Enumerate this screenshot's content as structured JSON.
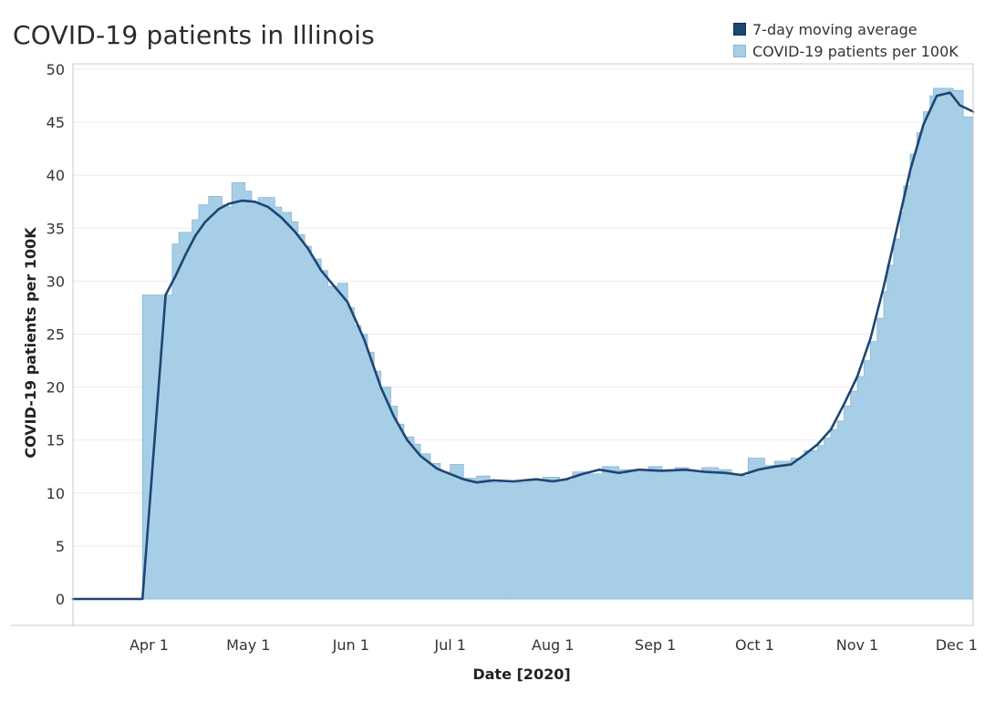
{
  "title": "COVID-19 patients in Illinois",
  "legend": [
    {
      "label": "7-day moving average",
      "color": "#1d4673",
      "border": "#0f2f52"
    },
    {
      "label": "COVID-19 patients per 100K",
      "color": "#a6cee6",
      "border": "#8ab6d6"
    }
  ],
  "chart_data": {
    "type": "bar",
    "title": "COVID-19 patients in Illinois",
    "xlabel": "Date [2020]",
    "ylabel": "COVID-19 patients per 100K",
    "ylim": [
      0,
      50
    ],
    "yticks": [
      0,
      5,
      10,
      15,
      20,
      25,
      30,
      35,
      40,
      45,
      50
    ],
    "x_start": "2020-03-09",
    "x_end": "2020-12-06",
    "xticks": [
      {
        "date": "2020-04-01",
        "label": "Apr 1"
      },
      {
        "date": "2020-05-01",
        "label": "May 1"
      },
      {
        "date": "2020-06-01",
        "label": "Jun 1"
      },
      {
        "date": "2020-07-01",
        "label": "Jul 1"
      },
      {
        "date": "2020-08-01",
        "label": "Aug 1"
      },
      {
        "date": "2020-09-01",
        "label": "Sep 1"
      },
      {
        "date": "2020-10-01",
        "label": "Oct 1"
      },
      {
        "date": "2020-11-01",
        "label": "Nov 1"
      },
      {
        "date": "2020-12-01",
        "label": "Dec 1"
      }
    ],
    "legend_position": "top-right",
    "grid": "horizontal",
    "series": [
      {
        "name": "COVID-19 patients per 100K",
        "kind": "bar",
        "color": "#a6cee6",
        "points": [
          [
            "2020-03-09",
            0
          ],
          [
            "2020-03-15",
            0
          ],
          [
            "2020-03-22",
            0
          ],
          [
            "2020-03-29",
            0
          ],
          [
            "2020-03-30",
            28.7
          ],
          [
            "2020-04-08",
            33.5
          ],
          [
            "2020-04-10",
            34.6
          ],
          [
            "2020-04-14",
            35.8
          ],
          [
            "2020-04-16",
            37.2
          ],
          [
            "2020-04-19",
            38.0
          ],
          [
            "2020-04-23",
            37.2
          ],
          [
            "2020-04-25",
            37.0
          ],
          [
            "2020-04-26",
            39.3
          ],
          [
            "2020-04-30",
            38.5
          ],
          [
            "2020-05-02",
            37.5
          ],
          [
            "2020-05-04",
            37.9
          ],
          [
            "2020-05-09",
            37.0
          ],
          [
            "2020-05-11",
            36.5
          ],
          [
            "2020-05-14",
            35.6
          ],
          [
            "2020-05-16",
            34.4
          ],
          [
            "2020-05-18",
            33.3
          ],
          [
            "2020-05-20",
            32.1
          ],
          [
            "2020-05-23",
            31.0
          ],
          [
            "2020-05-25",
            29.5
          ],
          [
            "2020-05-28",
            29.8
          ],
          [
            "2020-05-31",
            27.5
          ],
          [
            "2020-06-02",
            25.8
          ],
          [
            "2020-06-04",
            25.0
          ],
          [
            "2020-06-06",
            23.3
          ],
          [
            "2020-06-08",
            21.5
          ],
          [
            "2020-06-10",
            20.0
          ],
          [
            "2020-06-13",
            18.2
          ],
          [
            "2020-06-15",
            16.5
          ],
          [
            "2020-06-17",
            15.3
          ],
          [
            "2020-06-20",
            14.6
          ],
          [
            "2020-06-22",
            13.7
          ],
          [
            "2020-06-25",
            12.8
          ],
          [
            "2020-06-28",
            12.0
          ],
          [
            "2020-07-01",
            12.7
          ],
          [
            "2020-07-05",
            11.4
          ],
          [
            "2020-07-09",
            11.6
          ],
          [
            "2020-07-13",
            11.0
          ],
          [
            "2020-07-16",
            11.1
          ],
          [
            "2020-07-20",
            11.0
          ],
          [
            "2020-07-24",
            11.3
          ],
          [
            "2020-07-29",
            11.5
          ],
          [
            "2020-08-03",
            11.2
          ],
          [
            "2020-08-07",
            12.0
          ],
          [
            "2020-08-12",
            11.8
          ],
          [
            "2020-08-16",
            12.5
          ],
          [
            "2020-08-21",
            12.2
          ],
          [
            "2020-08-26",
            12.0
          ],
          [
            "2020-08-30",
            12.5
          ],
          [
            "2020-09-03",
            12.2
          ],
          [
            "2020-09-07",
            12.4
          ],
          [
            "2020-09-11",
            12.1
          ],
          [
            "2020-09-15",
            12.4
          ],
          [
            "2020-09-20",
            12.2
          ],
          [
            "2020-09-24",
            11.8
          ],
          [
            "2020-09-27",
            11.6
          ],
          [
            "2020-09-29",
            13.3
          ],
          [
            "2020-10-04",
            12.6
          ],
          [
            "2020-10-07",
            13.0
          ],
          [
            "2020-10-12",
            13.3
          ],
          [
            "2020-10-16",
            14.0
          ],
          [
            "2020-10-20",
            14.5
          ],
          [
            "2020-10-22",
            15.2
          ],
          [
            "2020-10-24",
            16.0
          ],
          [
            "2020-10-26",
            16.8
          ],
          [
            "2020-10-28",
            18.2
          ],
          [
            "2020-10-30",
            19.6
          ],
          [
            "2020-11-01",
            21.0
          ],
          [
            "2020-11-03",
            22.5
          ],
          [
            "2020-11-05",
            24.3
          ],
          [
            "2020-11-07",
            26.5
          ],
          [
            "2020-11-09",
            29.0
          ],
          [
            "2020-11-10",
            31.5
          ],
          [
            "2020-11-12",
            34.0
          ],
          [
            "2020-11-14",
            36.5
          ],
          [
            "2020-11-15",
            39.0
          ],
          [
            "2020-11-17",
            42.0
          ],
          [
            "2020-11-19",
            44.0
          ],
          [
            "2020-11-21",
            46.0
          ],
          [
            "2020-11-23",
            47.5
          ],
          [
            "2020-11-24",
            48.2
          ],
          [
            "2020-11-30",
            48.0
          ],
          [
            "2020-12-03",
            45.5
          ]
        ]
      },
      {
        "name": "7-day moving average",
        "kind": "line",
        "color": "#1d4673",
        "points": [
          [
            "2020-03-09",
            0
          ],
          [
            "2020-03-29",
            0
          ],
          [
            "2020-03-30",
            0
          ],
          [
            "2020-04-06",
            28.7
          ],
          [
            "2020-04-09",
            30.5
          ],
          [
            "2020-04-12",
            32.5
          ],
          [
            "2020-04-15",
            34.3
          ],
          [
            "2020-04-18",
            35.6
          ],
          [
            "2020-04-22",
            36.8
          ],
          [
            "2020-04-25",
            37.3
          ],
          [
            "2020-04-29",
            37.6
          ],
          [
            "2020-05-03",
            37.5
          ],
          [
            "2020-05-07",
            37.0
          ],
          [
            "2020-05-11",
            36.0
          ],
          [
            "2020-05-15",
            34.7
          ],
          [
            "2020-05-19",
            33.1
          ],
          [
            "2020-05-23",
            31.0
          ],
          [
            "2020-05-27",
            29.5
          ],
          [
            "2020-05-31",
            28.0
          ],
          [
            "2020-06-05",
            24.5
          ],
          [
            "2020-06-10",
            20.0
          ],
          [
            "2020-06-14",
            17.2
          ],
          [
            "2020-06-18",
            15.0
          ],
          [
            "2020-06-22",
            13.5
          ],
          [
            "2020-06-27",
            12.3
          ],
          [
            "2020-07-01",
            11.8
          ],
          [
            "2020-07-05",
            11.3
          ],
          [
            "2020-07-09",
            11.0
          ],
          [
            "2020-07-14",
            11.2
          ],
          [
            "2020-07-20",
            11.1
          ],
          [
            "2020-07-27",
            11.3
          ],
          [
            "2020-08-01",
            11.1
          ],
          [
            "2020-08-05",
            11.3
          ],
          [
            "2020-08-10",
            11.8
          ],
          [
            "2020-08-15",
            12.2
          ],
          [
            "2020-08-21",
            11.9
          ],
          [
            "2020-08-27",
            12.2
          ],
          [
            "2020-09-03",
            12.1
          ],
          [
            "2020-09-10",
            12.2
          ],
          [
            "2020-09-16",
            12.0
          ],
          [
            "2020-09-22",
            11.9
          ],
          [
            "2020-09-27",
            11.7
          ],
          [
            "2020-10-02",
            12.2
          ],
          [
            "2020-10-07",
            12.5
          ],
          [
            "2020-10-12",
            12.7
          ],
          [
            "2020-10-16",
            13.6
          ],
          [
            "2020-10-20",
            14.6
          ],
          [
            "2020-10-24",
            16.0
          ],
          [
            "2020-10-28",
            18.4
          ],
          [
            "2020-11-01",
            21.0
          ],
          [
            "2020-11-05",
            24.6
          ],
          [
            "2020-11-09",
            29.5
          ],
          [
            "2020-11-13",
            35.0
          ],
          [
            "2020-11-17",
            40.5
          ],
          [
            "2020-11-21",
            44.8
          ],
          [
            "2020-11-25",
            47.5
          ],
          [
            "2020-11-29",
            47.8
          ],
          [
            "2020-12-02",
            46.6
          ],
          [
            "2020-12-06",
            46.0
          ]
        ]
      }
    ]
  }
}
